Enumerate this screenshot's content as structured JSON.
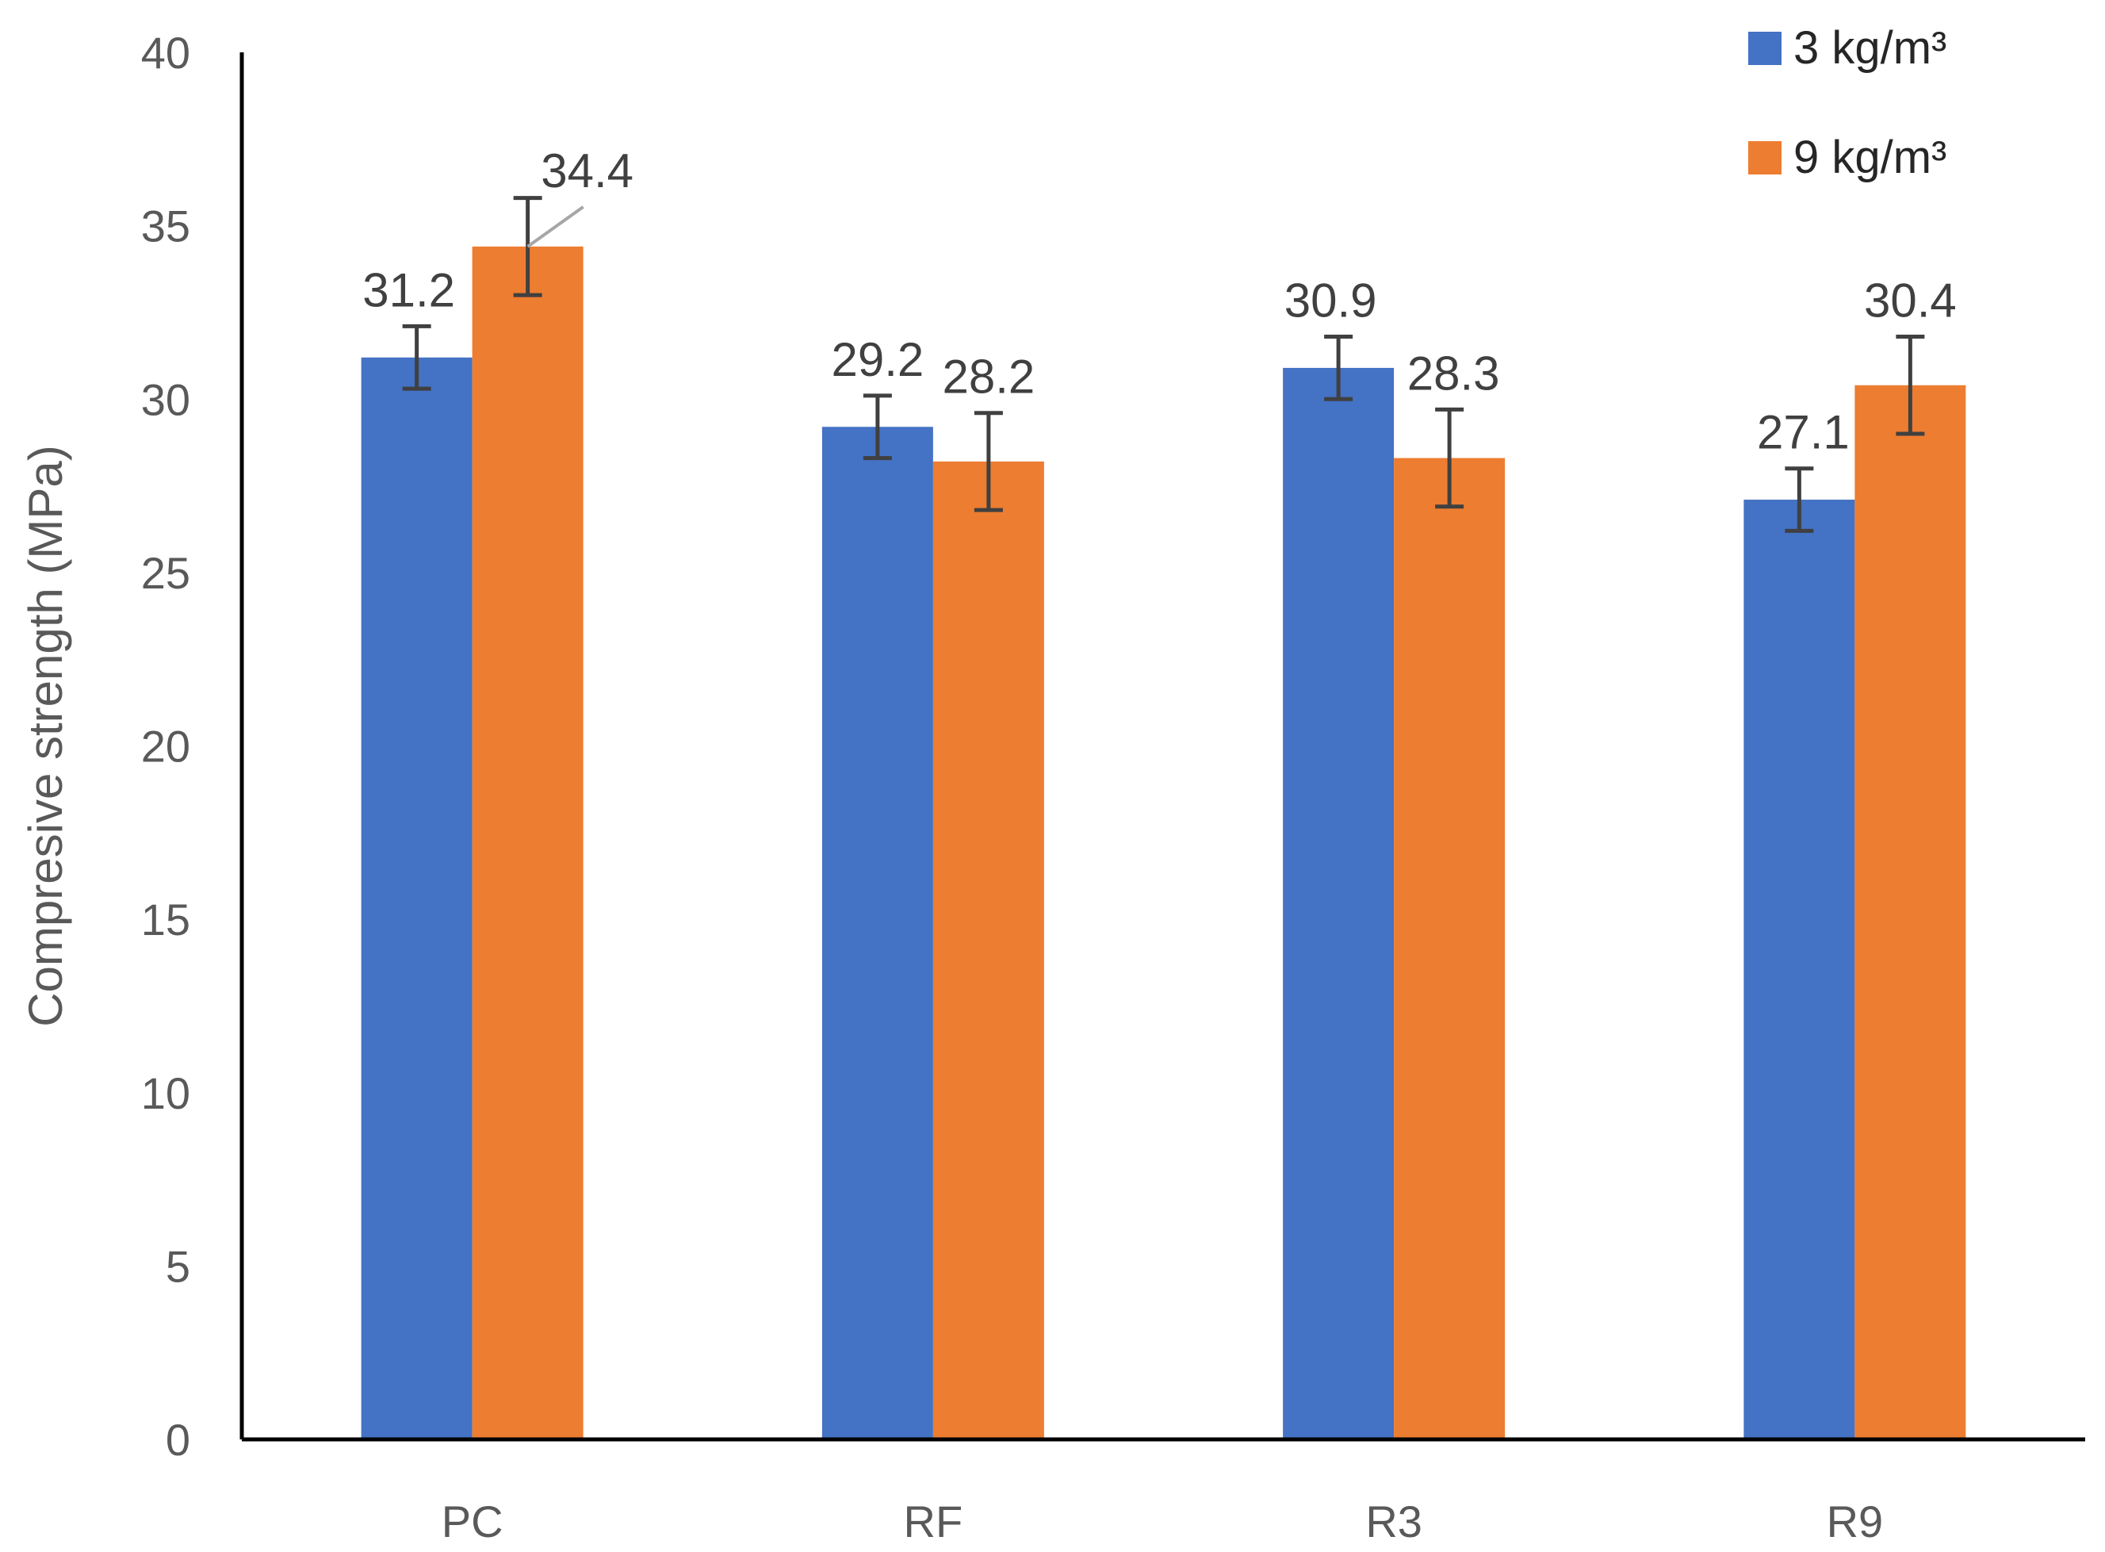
{
  "chart_data": {
    "type": "bar",
    "title": "",
    "xlabel": "",
    "ylabel": "Compresive strength (MPa)",
    "ylim": [
      0,
      40
    ],
    "yticks": [
      0,
      5,
      10,
      15,
      20,
      25,
      30,
      35,
      40
    ],
    "categories": [
      "PC",
      "RF",
      "R3",
      "R9"
    ],
    "series": [
      {
        "name": "3 kg/m³",
        "color": "#4472C4",
        "values": [
          31.2,
          29.2,
          30.9,
          27.1
        ],
        "errors": [
          0.9,
          0.9,
          0.9,
          0.9
        ],
        "labels": [
          "31.2",
          "29.2",
          "30.9",
          "27.1"
        ]
      },
      {
        "name": "9 kg/m³",
        "color": "#ED7D31",
        "values": [
          34.4,
          28.2,
          28.3,
          30.4
        ],
        "errors": [
          1.4,
          1.4,
          1.4,
          1.4
        ],
        "labels": [
          "34.4",
          "28.2",
          "28.3",
          "30.4"
        ]
      }
    ],
    "legend": "top-right",
    "grid": false
  }
}
